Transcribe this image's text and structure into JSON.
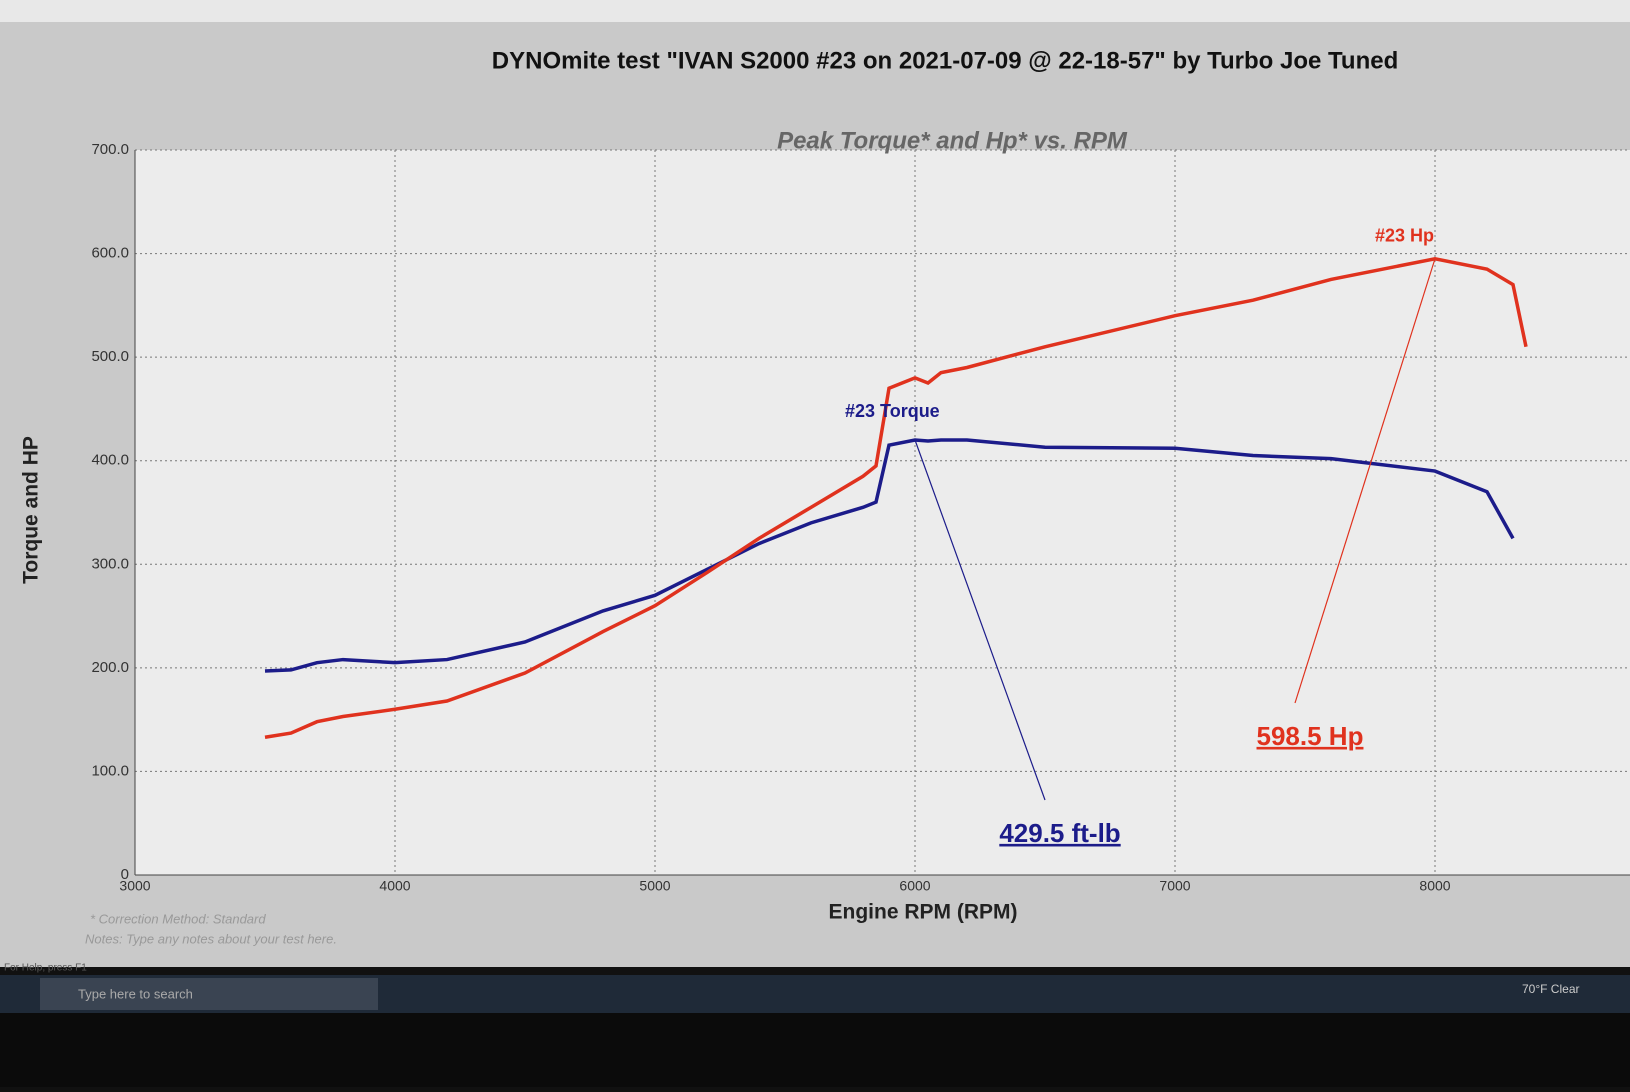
{
  "chart_data": {
    "type": "line",
    "title": "DYNOmite test \"IVAN S2000 #23 on 2021-07-09 @ 22-18-57\" by Turbo Joe Tuned",
    "subtitle": "Peak Torque* and Hp* vs. RPM",
    "x_label": "Engine RPM (RPM)",
    "y_label": "Torque and HP",
    "x": [
      3500,
      3600,
      3700,
      3800,
      4000,
      4200,
      4500,
      4800,
      5000,
      5200,
      5400,
      5600,
      5800,
      5850,
      5900,
      6000,
      6050,
      6100,
      6200,
      6500,
      7000,
      7300,
      7600,
      8000,
      8200,
      8300,
      8350
    ],
    "series": [
      {
        "name": "#23 Torque",
        "color": "#1c1c8a",
        "values": [
          197,
          198,
          205,
          208,
          205,
          208,
          225,
          255,
          270,
          295,
          320,
          340,
          355,
          360,
          415,
          420,
          419,
          420,
          420,
          413,
          412,
          405,
          402,
          390,
          370,
          325,
          null
        ]
      },
      {
        "name": "#23 Hp",
        "color": "#e0321e",
        "values": [
          133,
          137,
          148,
          153,
          160,
          168,
          195,
          235,
          260,
          292,
          325,
          355,
          385,
          395,
          470,
          480,
          475,
          485,
          490,
          510,
          540,
          555,
          575,
          595,
          585,
          570,
          510
        ]
      }
    ],
    "annotations": [
      "429.5 ft-lb",
      "598.5 Hp"
    ],
    "xlim": [
      3000,
      8600
    ],
    "xticks": [
      3000,
      4000,
      5000,
      6000,
      7000,
      8000
    ],
    "ylim": [
      0,
      700
    ],
    "yticks": [
      0,
      {
        "value": 100,
        "label": "100.0"
      },
      {
        "value": 200,
        "label": "200.0"
      },
      {
        "value": 300,
        "label": "300.0"
      },
      {
        "value": 400,
        "label": "400.0"
      },
      {
        "value": 500,
        "label": "500.0"
      },
      {
        "value": 600,
        "label": "600.0"
      },
      {
        "value": 700,
        "label": "700.0"
      }
    ],
    "grid": true,
    "notes": [
      "* Correction Method: Standard",
      "Notes: Type any notes about your test here."
    ],
    "status": "For Help, press F1",
    "search": "Type here to search",
    "weather": "70°F Clear"
  }
}
